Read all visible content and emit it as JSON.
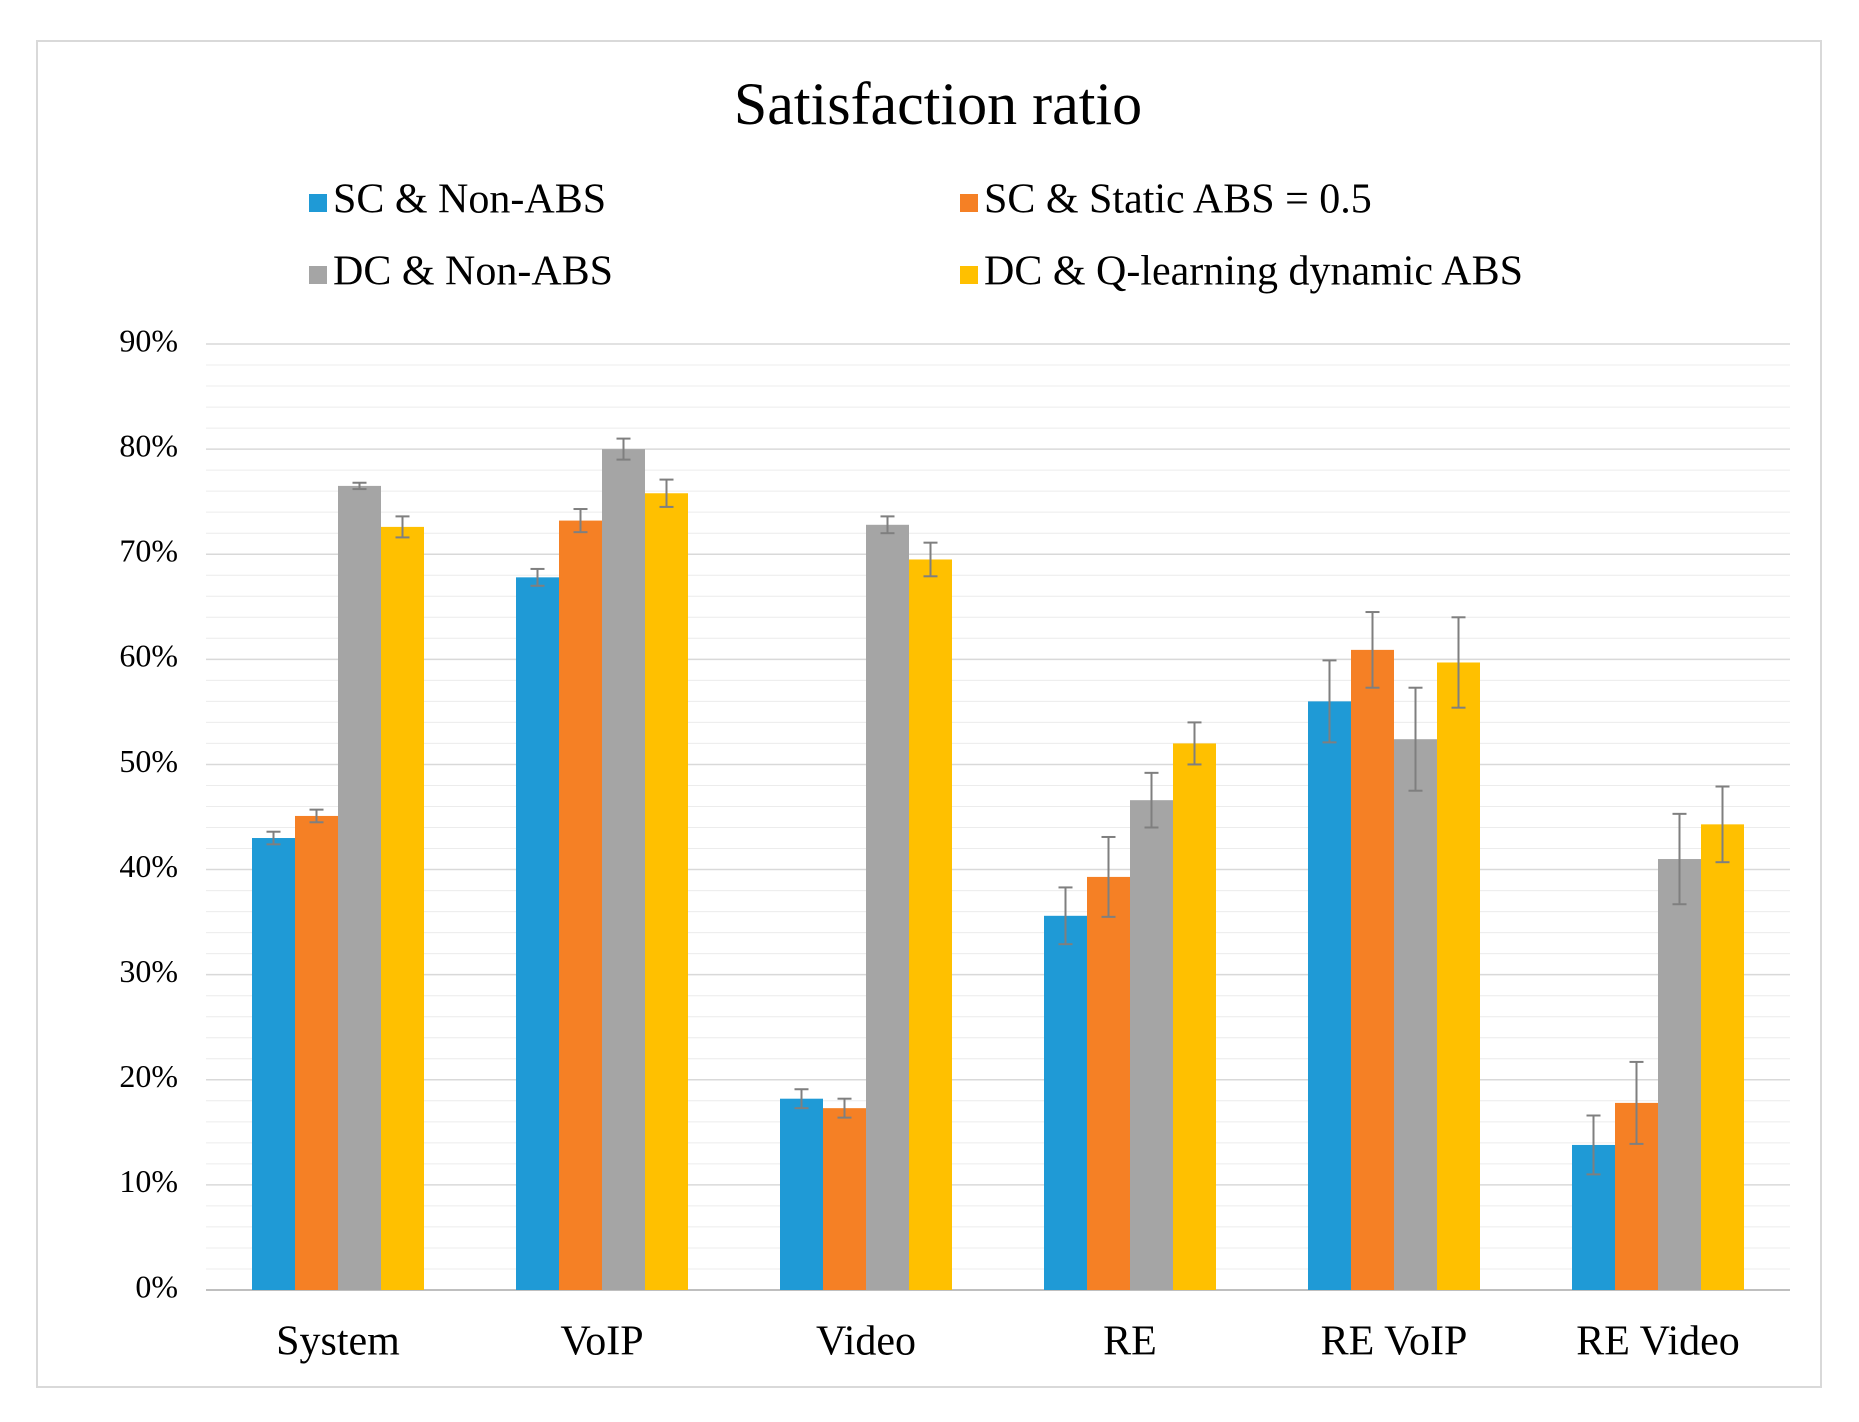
{
  "chart_data": {
    "type": "bar",
    "title": "Satisfaction ratio",
    "xlabel": "",
    "ylabel": "",
    "ylim": [
      0,
      90
    ],
    "yticks": [
      "0%",
      "10%",
      "20%",
      "30%",
      "40%",
      "50%",
      "60%",
      "70%",
      "80%",
      "90%"
    ],
    "categories": [
      "System",
      "VoIP",
      "Video",
      "RE",
      "RE VoIP",
      "RE Video"
    ],
    "legend_position": "top",
    "series": [
      {
        "name": "SC & Non-ABS",
        "color": "#1f9ad6",
        "values": [
          43.0,
          67.8,
          18.2,
          35.6,
          56.0,
          13.8
        ],
        "errors": [
          0.6,
          0.8,
          0.9,
          2.7,
          3.9,
          2.8
        ]
      },
      {
        "name": "SC & Static ABS = 0.5",
        "color": "#f58025",
        "values": [
          45.1,
          73.2,
          17.3,
          39.3,
          60.9,
          17.8
        ],
        "errors": [
          0.6,
          1.1,
          0.9,
          3.8,
          3.6,
          3.9
        ]
      },
      {
        "name": "DC & Non-ABS",
        "color": "#a5a5a5",
        "values": [
          76.5,
          80.0,
          72.8,
          46.6,
          52.4,
          41.0
        ],
        "errors": [
          0.3,
          1.0,
          0.8,
          2.6,
          4.9,
          4.3
        ]
      },
      {
        "name": "DC & Q-learning dynamic ABS",
        "color": "#ffc000",
        "values": [
          72.6,
          75.8,
          69.5,
          52.0,
          59.7,
          44.3
        ],
        "errors": [
          1.0,
          1.3,
          1.6,
          2.0,
          4.3,
          3.6
        ]
      }
    ]
  }
}
